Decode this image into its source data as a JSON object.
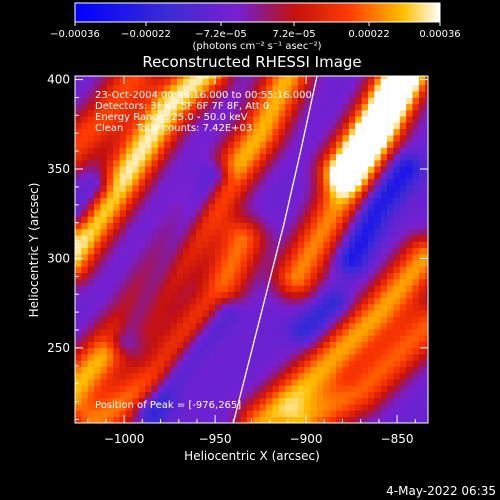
{
  "chart_data": {
    "type": "heatmap",
    "title": "Reconstructed RHESSI Image",
    "xlabel": "Heliocentric X (arcsec)",
    "ylabel": "Heliocentric Y (arcsec)",
    "xlim": [
      -1027,
      -833
    ],
    "ylim": [
      208,
      402
    ],
    "x_ticks": [
      -1000,
      -950,
      -900,
      -850
    ],
    "y_ticks": [
      250,
      300,
      350,
      400
    ],
    "x_tick_labels": [
      "−1000",
      "−950",
      "−900",
      "−850"
    ],
    "y_tick_labels": [
      "250",
      "300",
      "350",
      "400"
    ],
    "colorbar": {
      "range": [
        -0.00036,
        0.00036
      ],
      "ticks": [
        -0.00036,
        -0.00022,
        -7.2e-05,
        7.2e-05,
        0.00022,
        0.00036
      ],
      "tick_labels": [
        "−0.00036",
        "−0.00022",
        "−7.2e−05",
        "7.2e−05",
        "0.00022",
        "0.00036"
      ],
      "units_label": "(photons cm⁻² s⁻¹ asec⁻²)"
    },
    "info_lines": [
      "23-Oct-2004 00:49:16.000 to 00:55:16.000",
      "Detectors: 3F 4F 5F 6F 7F 8F, Att 0",
      "Energy Range: 25.0 - 50.0 keV",
      "Clean    Total counts: 7.42E+03"
    ],
    "peak_label": "Position of Peak = [-976,265]",
    "limb_curve": [
      [
        -940,
        208
      ],
      [
        -932,
        240
      ],
      [
        -922,
        280
      ],
      [
        -912,
        320
      ],
      [
        -903,
        360
      ],
      [
        -894,
        402
      ]
    ],
    "background_value": -7.2e-05,
    "ridges": [
      {
        "points": [
          [
            -1030,
            300
          ],
          [
            -1000,
            345
          ],
          [
            -975,
            385
          ],
          [
            -955,
            405
          ]
        ],
        "value": 0.00034
      },
      {
        "points": [
          [
            -1030,
            225
          ],
          [
            -995,
            265
          ],
          [
            -960,
            320
          ],
          [
            -925,
            370
          ],
          [
            -910,
            402
          ]
        ],
        "value": 0.00028
      },
      {
        "points": [
          [
            -1015,
            208
          ],
          [
            -980,
            235
          ],
          [
            -950,
            275
          ],
          [
            -935,
            310
          ]
        ],
        "value": 0.00022
      },
      {
        "points": [
          [
            -905,
            290
          ],
          [
            -880,
            335
          ],
          [
            -860,
            370
          ],
          [
            -845,
            402
          ]
        ],
        "value": 0.00024
      },
      {
        "points": [
          [
            -925,
            208
          ],
          [
            -890,
            240
          ],
          [
            -860,
            270
          ],
          [
            -835,
            300
          ]
        ],
        "value": 0.00026
      },
      {
        "points": [
          [
            -900,
            208
          ],
          [
            -870,
            225
          ],
          [
            -845,
            250
          ],
          [
            -833,
            262
          ]
        ],
        "value": 0.0002
      },
      {
        "points": [
          [
            -1030,
            360
          ],
          [
            -1010,
            380
          ],
          [
            -995,
            402
          ]
        ],
        "value": 0.00018
      },
      {
        "points": [
          [
            -880,
            350
          ],
          [
            -860,
            380
          ],
          [
            -848,
            402
          ]
        ],
        "value": 0.0003
      }
    ],
    "troughs": [
      {
        "points": [
          [
            -1000,
            255
          ],
          [
            -975,
            300
          ],
          [
            -950,
            345
          ]
        ],
        "value": -0.00034
      },
      {
        "points": [
          [
            -985,
            215
          ],
          [
            -965,
            245
          ],
          [
            -945,
            270
          ]
        ],
        "value": -0.0003
      },
      {
        "points": [
          [
            -875,
            300
          ],
          [
            -860,
            330
          ],
          [
            -845,
            350
          ]
        ],
        "value": -0.00028
      },
      {
        "points": [
          [
            -1025,
            325
          ],
          [
            -1015,
            340
          ]
        ],
        "value": -0.00026
      },
      {
        "points": [
          [
            -900,
            260
          ],
          [
            -885,
            275
          ]
        ],
        "value": -0.00022
      }
    ]
  },
  "footer": {
    "date": "4-May-2022 06:35"
  }
}
